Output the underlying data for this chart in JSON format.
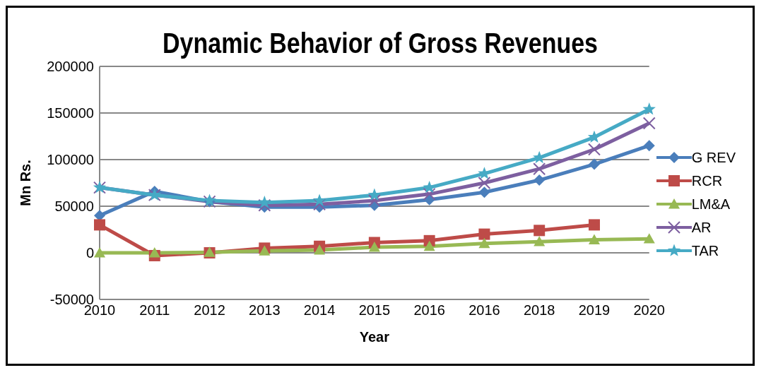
{
  "chart_data": {
    "type": "line",
    "title": "Dynamic Behavior of Gross Revenues",
    "xlabel": "Year",
    "ylabel": "Mn Rs.",
    "categories": [
      "2010",
      "2011",
      "2012",
      "2013",
      "2014",
      "2015",
      "2016",
      "2016",
      "2018",
      "2019",
      "2020"
    ],
    "ylim": [
      -50000,
      200000
    ],
    "yticks": [
      -50000,
      0,
      50000,
      100000,
      150000,
      200000
    ],
    "grid": "y",
    "legend": "right",
    "series": [
      {
        "name": "G REV",
        "color": "#4a7ebb",
        "marker": "diamond",
        "values": [
          40000,
          66000,
          55000,
          49000,
          49000,
          51000,
          57000,
          65000,
          78000,
          95000,
          115000
        ]
      },
      {
        "name": "RCR",
        "color": "#be4b48",
        "marker": "square",
        "values": [
          30000,
          -3000,
          0,
          5000,
          7000,
          11000,
          13000,
          20000,
          24000,
          30000,
          null
        ]
      },
      {
        "name": "LM&A",
        "color": "#98b954",
        "marker": "triangle",
        "values": [
          0,
          0,
          500,
          2000,
          3000,
          6000,
          7000,
          10000,
          12000,
          14000,
          15000
        ]
      },
      {
        "name": "AR",
        "color": "#7d5fa0",
        "marker": "cross",
        "values": [
          70000,
          62000,
          55000,
          51000,
          52000,
          56000,
          63000,
          75000,
          90000,
          111000,
          139000
        ]
      },
      {
        "name": "TAR",
        "color": "#46aac5",
        "marker": "star",
        "values": [
          70000,
          62000,
          56000,
          54000,
          56000,
          62000,
          70000,
          85000,
          102000,
          124000,
          154000
        ]
      }
    ]
  }
}
